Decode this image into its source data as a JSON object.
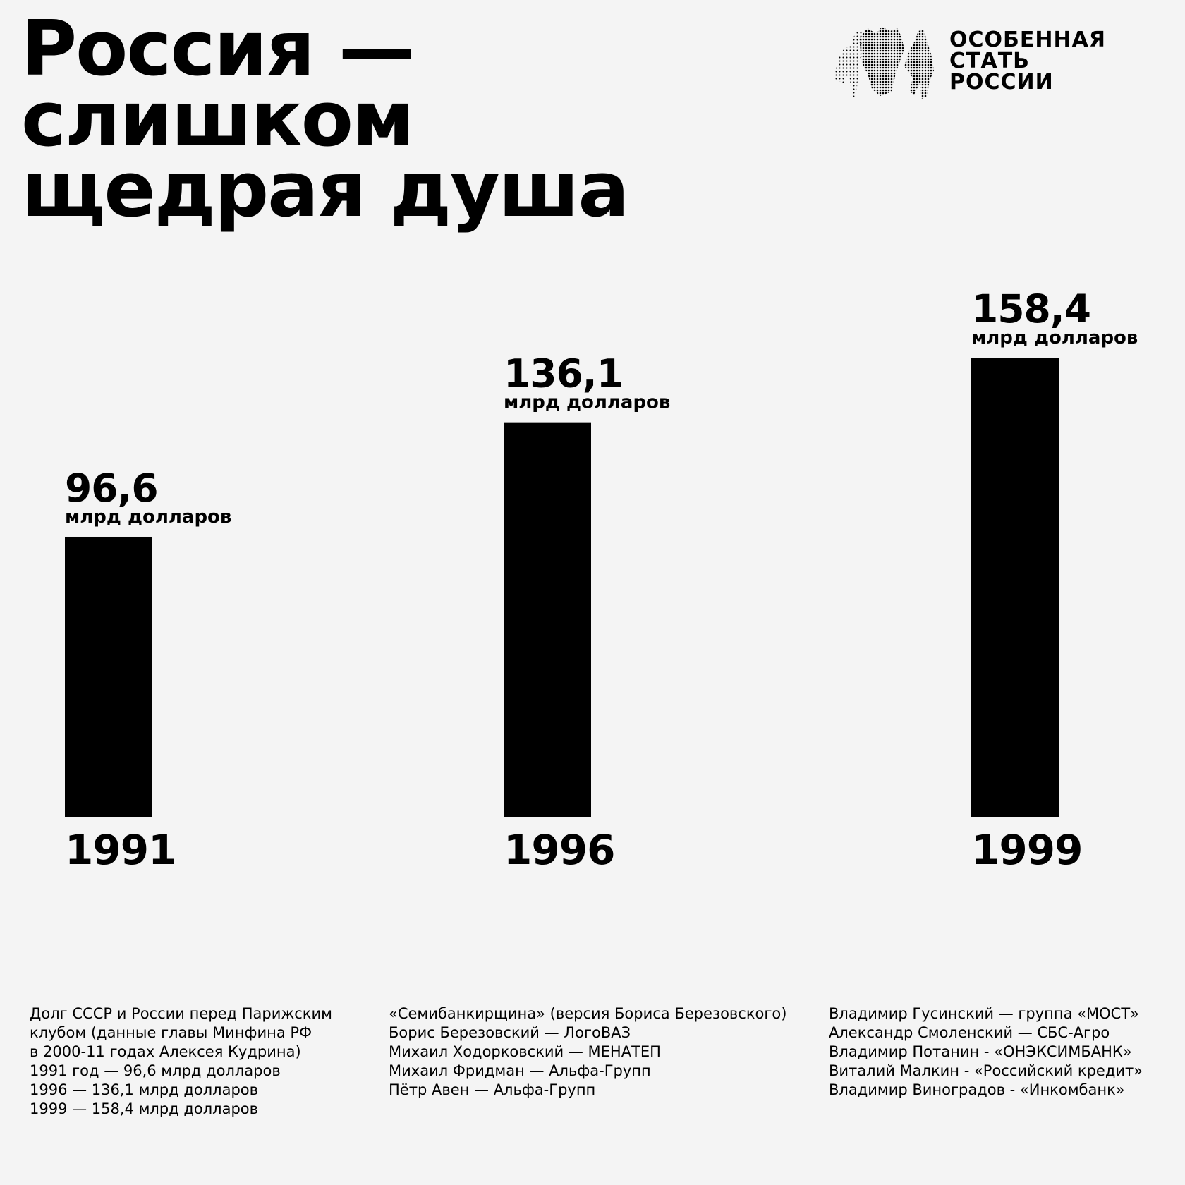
{
  "title_lines": [
    "Россия —",
    "слишком",
    "щедрая душа"
  ],
  "logo": {
    "text_lines": [
      "ОСОБЕННАЯ",
      "СТАТЬ",
      "РОССИИ"
    ]
  },
  "chart_data": {
    "type": "bar",
    "categories": [
      "1991",
      "1996",
      "1999"
    ],
    "values": [
      96.6,
      136.1,
      158.4
    ],
    "value_labels": [
      "96,6",
      "136,1",
      "158,4"
    ],
    "unit_label": "млрд долларов",
    "title": "",
    "xlabel": "",
    "ylabel": "",
    "ylim": [
      0,
      158.4
    ],
    "grid": false,
    "legend": "none",
    "bar_color": "#000000"
  },
  "notes": {
    "col1": [
      "Долг СССР и России перед Парижским",
      "клубом (данные главы Минфина РФ",
      "в 2000-11 годах Алексея Кудрина)",
      "1991 год — 96,6 млрд долларов",
      "1996 — 136,1 млрд долларов",
      "1999 — 158,4 млрд долларов"
    ],
    "col2": [
      "«Семибанкирщина» (версия Бориса Березовского)",
      "Борис Березовский — ЛогоВАЗ",
      "Михаил Ходорковский — МЕНАТЕП",
      "Михаил Фридман — Альфа-Групп",
      "Пётр Авен — Альфа-Групп"
    ],
    "col3": [
      "Владимир Гусинский — группа «МОСТ»",
      "Александр Смоленский — СБС-Агро",
      "Владимир Потанин - «ОНЭКСИМБАНК»",
      "Виталий Малкин - «Российский кредит»",
      "Владимир Виноградов - «Инкомбанк»"
    ]
  },
  "colors": {
    "background": "#f4f4f4",
    "ink": "#000000"
  }
}
